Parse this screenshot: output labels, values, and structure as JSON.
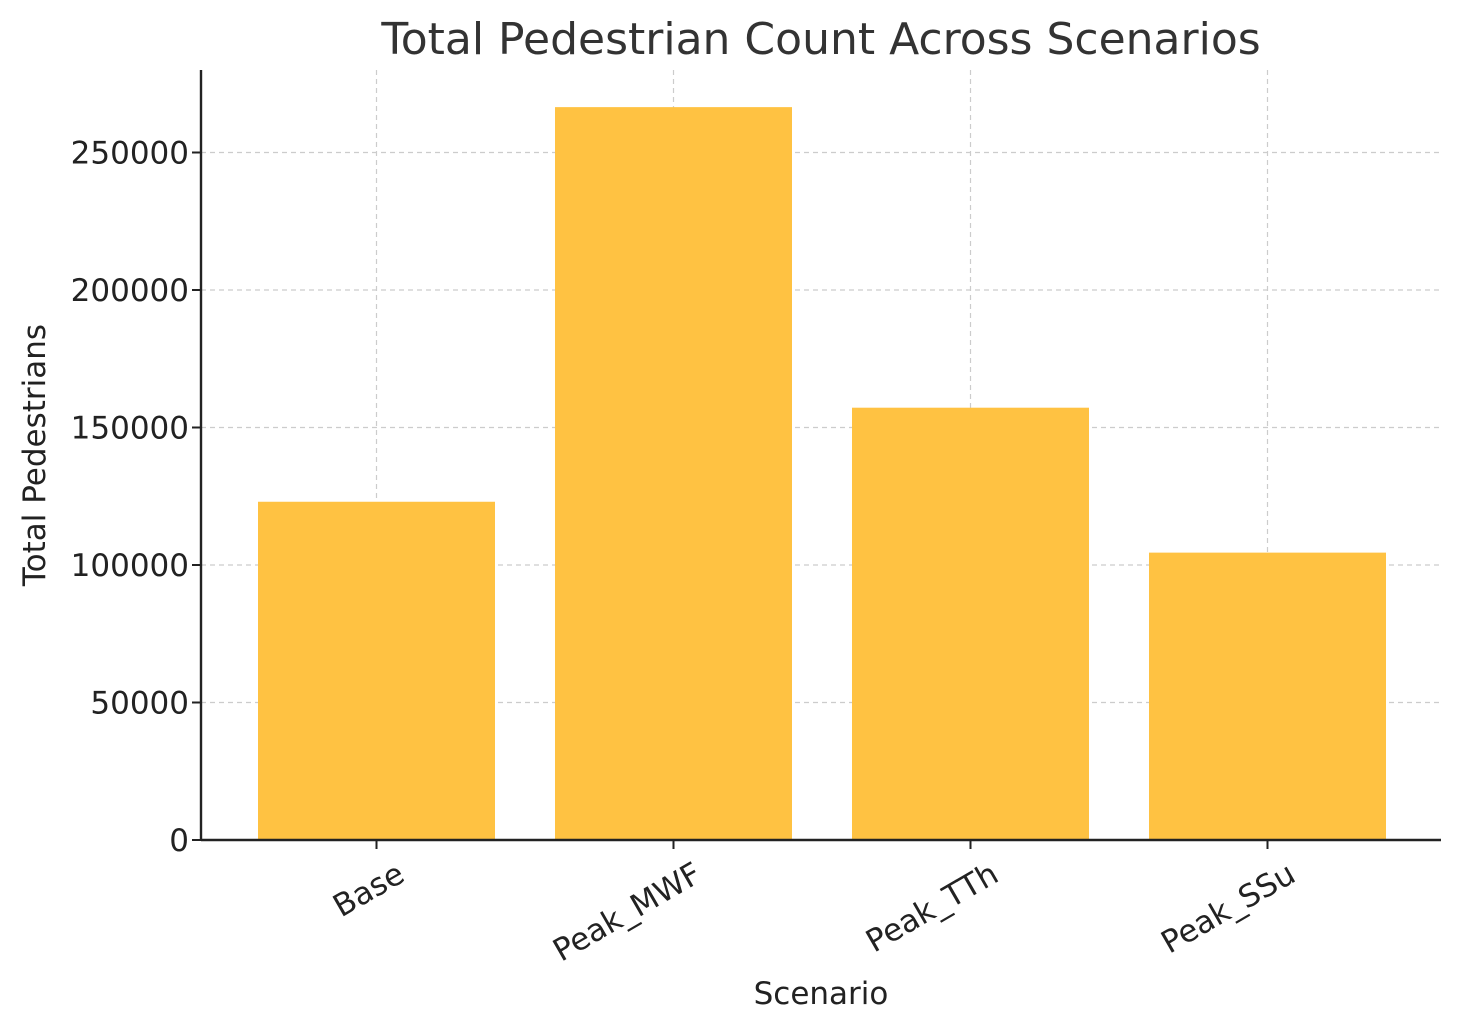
{
  "chart_data": {
    "type": "bar",
    "title": "Total Pedestrian Count Across Scenarios",
    "xlabel": "Scenario",
    "ylabel": "Total Pedestrians",
    "categories": [
      "Base",
      "Peak_MWF",
      "Peak_TTh",
      "Peak_SSu"
    ],
    "values": [
      123000,
      266500,
      157200,
      104500
    ],
    "ylim": [
      0,
      280000
    ],
    "yticks": [
      0,
      50000,
      100000,
      150000,
      200000,
      250000
    ],
    "ytick_labels": [
      "0",
      "50000",
      "100000",
      "150000",
      "200000",
      "250000"
    ],
    "grid": true,
    "bar_color": "#ffc242",
    "axis_color": "#222222",
    "grid_color": "#cccccc",
    "text_color": "#333333"
  }
}
